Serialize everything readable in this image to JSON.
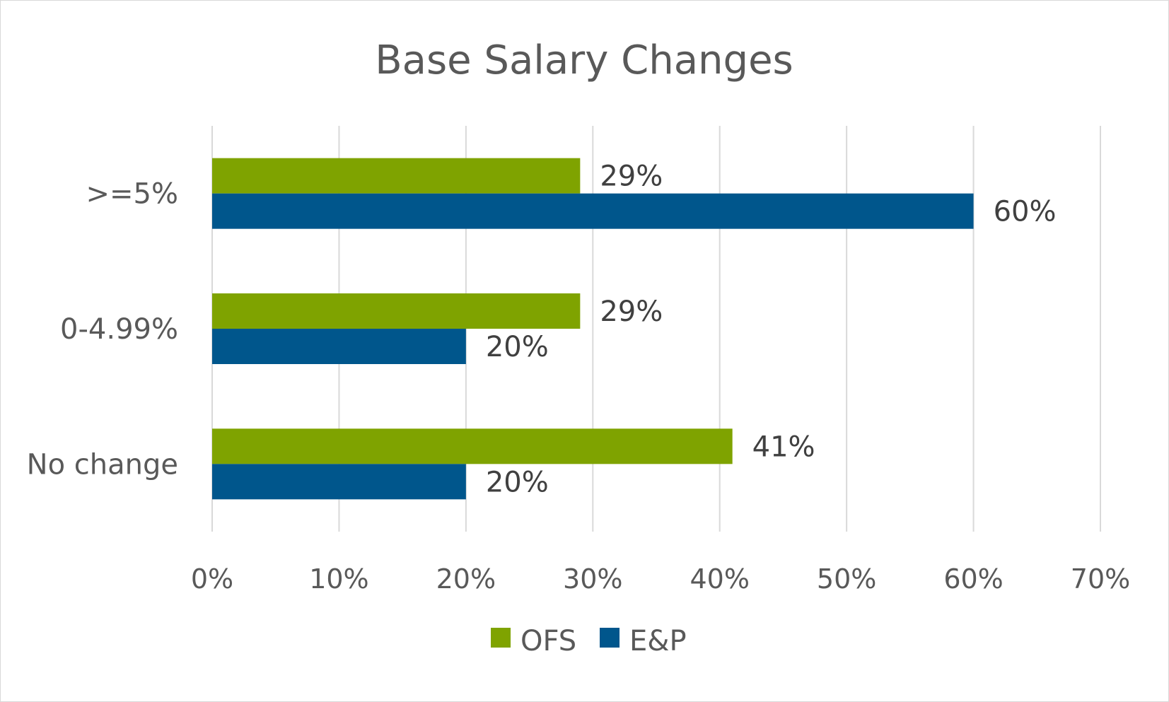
{
  "chart_data": {
    "type": "bar",
    "orientation": "horizontal",
    "title": "Base Salary Changes",
    "categories": [
      ">=5%",
      "0-4.99%",
      "No change"
    ],
    "series": [
      {
        "name": "OFS",
        "color": "#7FA300",
        "values": [
          29,
          29,
          41
        ],
        "labels": [
          "29%",
          "29%",
          "41%"
        ]
      },
      {
        "name": "E&P",
        "color": "#00568C",
        "values": [
          60,
          20,
          20
        ],
        "labels": [
          "60%",
          "20%",
          "20%"
        ]
      }
    ],
    "xlim": [
      0,
      70
    ],
    "xticks": [
      0,
      10,
      20,
      30,
      40,
      50,
      60,
      70
    ],
    "xtick_labels": [
      "0%",
      "10%",
      "20%",
      "30%",
      "40%",
      "50%",
      "60%",
      "70%"
    ],
    "gridlines": true,
    "gridline_color": "#d9d9d9",
    "legend_position": "bottom"
  }
}
